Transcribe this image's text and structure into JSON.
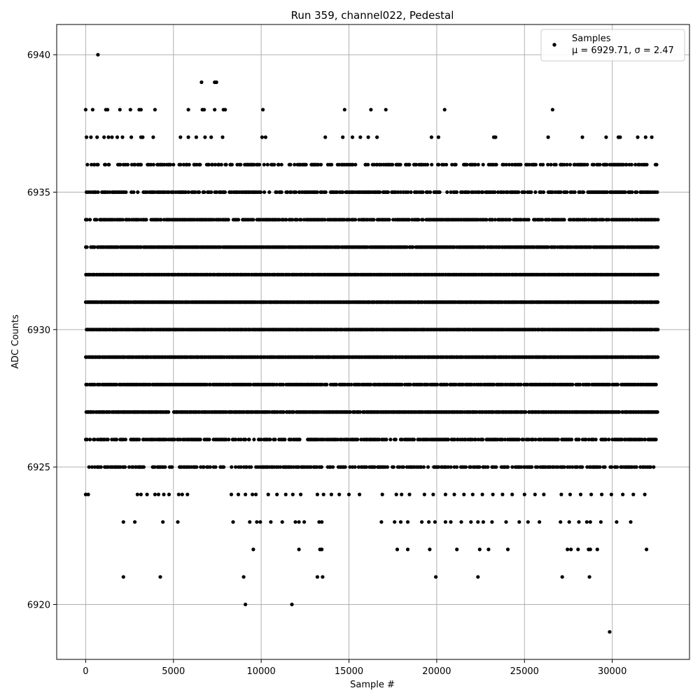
{
  "chart_data": {
    "type": "scatter",
    "title": "Run 359, channel022, Pedestal",
    "xlabel": "Sample #",
    "ylabel": "ADC Counts",
    "xlim": [
      -1650,
      34400
    ],
    "ylim": [
      6918,
      6941.1
    ],
    "xticks": [
      0,
      5000,
      10000,
      15000,
      20000,
      25000,
      30000
    ],
    "xtick_labels": [
      "0",
      "5000",
      "10000",
      "15000",
      "20000",
      "25000",
      "30000"
    ],
    "yticks": [
      6920,
      6925,
      6930,
      6935,
      6940
    ],
    "ytick_labels": [
      "6920",
      "6925",
      "6930",
      "6935",
      "6940"
    ],
    "grid": true,
    "legend": {
      "placement": "top-right",
      "entries": [
        "Samples",
        "μ = 6929.71, σ = 2.47"
      ]
    },
    "marker_color": "#000000",
    "series": [
      {
        "name": "Samples",
        "stats": {
          "mu": 6929.71,
          "sigma": 2.47
        },
        "points": [
          [
            700,
            6940
          ],
          [
            6600,
            6939
          ],
          [
            7350,
            6939
          ],
          [
            7450,
            6939
          ],
          [
            0,
            6938
          ],
          [
            400,
            6938
          ],
          [
            1150,
            6938
          ],
          [
            1250,
            6938
          ],
          [
            1950,
            6938
          ],
          [
            2550,
            6938
          ],
          [
            3050,
            6938
          ],
          [
            3150,
            6938
          ],
          [
            3950,
            6938
          ],
          [
            5850,
            6938
          ],
          [
            6650,
            6938
          ],
          [
            6750,
            6938
          ],
          [
            7350,
            6938
          ],
          [
            7850,
            6938
          ],
          [
            7950,
            6938
          ],
          [
            10100,
            6938
          ],
          [
            14750,
            6938
          ],
          [
            16250,
            6938
          ],
          [
            17100,
            6938
          ],
          [
            20450,
            6938
          ],
          [
            26600,
            6938
          ],
          [
            50,
            6937
          ],
          [
            300,
            6937
          ],
          [
            650,
            6937
          ],
          [
            1050,
            6937
          ],
          [
            1300,
            6937
          ],
          [
            1500,
            6937
          ],
          [
            1800,
            6937
          ],
          [
            2100,
            6937
          ],
          [
            2600,
            6937
          ],
          [
            3150,
            6937
          ],
          [
            3250,
            6937
          ],
          [
            3850,
            6937
          ],
          [
            5400,
            6937
          ],
          [
            5850,
            6937
          ],
          [
            6300,
            6937
          ],
          [
            6800,
            6937
          ],
          [
            7150,
            6937
          ],
          [
            7800,
            6937
          ],
          [
            10050,
            6937
          ],
          [
            10250,
            6937
          ],
          [
            13650,
            6937
          ],
          [
            14650,
            6937
          ],
          [
            15200,
            6937
          ],
          [
            15650,
            6937
          ],
          [
            16100,
            6937
          ],
          [
            16600,
            6937
          ],
          [
            19700,
            6937
          ],
          [
            20100,
            6937
          ],
          [
            23250,
            6937
          ],
          [
            23350,
            6937
          ],
          [
            26350,
            6937
          ],
          [
            28300,
            6937
          ],
          [
            29650,
            6937
          ],
          [
            30350,
            6937
          ],
          [
            30450,
            6937
          ],
          [
            31450,
            6937
          ],
          [
            31900,
            6937
          ],
          [
            32250,
            6937
          ],
          [
            9100,
            6920
          ],
          [
            11750,
            6920
          ],
          [
            29850,
            6919
          ],
          [
            2150,
            6921
          ],
          [
            4250,
            6921
          ],
          [
            9000,
            6921
          ],
          [
            13200,
            6921
          ],
          [
            13500,
            6921
          ],
          [
            19950,
            6921
          ],
          [
            22350,
            6921
          ],
          [
            27150,
            6921
          ],
          [
            28700,
            6921
          ],
          [
            9550,
            6922
          ],
          [
            12150,
            6922
          ],
          [
            13350,
            6922
          ],
          [
            13450,
            6922
          ],
          [
            17750,
            6922
          ],
          [
            18350,
            6922
          ],
          [
            19600,
            6922
          ],
          [
            21150,
            6922
          ],
          [
            22450,
            6922
          ],
          [
            22950,
            6922
          ],
          [
            24050,
            6922
          ],
          [
            27450,
            6922
          ],
          [
            27650,
            6922
          ],
          [
            28050,
            6922
          ],
          [
            28650,
            6922
          ],
          [
            28750,
            6922
          ],
          [
            29150,
            6922
          ],
          [
            31950,
            6922
          ],
          [
            2150,
            6923
          ],
          [
            2800,
            6923
          ],
          [
            4400,
            6923
          ],
          [
            5250,
            6923
          ],
          [
            8400,
            6923
          ],
          [
            9350,
            6923
          ],
          [
            9750,
            6923
          ],
          [
            9950,
            6923
          ],
          [
            10550,
            6923
          ],
          [
            11200,
            6923
          ],
          [
            11950,
            6923
          ],
          [
            12150,
            6923
          ],
          [
            12450,
            6923
          ],
          [
            13300,
            6923
          ],
          [
            13450,
            6923
          ],
          [
            16850,
            6923
          ],
          [
            17600,
            6923
          ],
          [
            17950,
            6923
          ],
          [
            18350,
            6923
          ],
          [
            19150,
            6923
          ],
          [
            19550,
            6923
          ],
          [
            19900,
            6923
          ],
          [
            20500,
            6923
          ],
          [
            20800,
            6923
          ],
          [
            21400,
            6923
          ],
          [
            21950,
            6923
          ],
          [
            22350,
            6923
          ],
          [
            22650,
            6923
          ],
          [
            23150,
            6923
          ],
          [
            23950,
            6923
          ],
          [
            24700,
            6923
          ],
          [
            25200,
            6923
          ],
          [
            25850,
            6923
          ],
          [
            27050,
            6923
          ],
          [
            27550,
            6923
          ],
          [
            28100,
            6923
          ],
          [
            28550,
            6923
          ],
          [
            28750,
            6923
          ],
          [
            29350,
            6923
          ],
          [
            30250,
            6923
          ],
          [
            31050,
            6923
          ],
          [
            0,
            6924
          ],
          [
            150,
            6924
          ],
          [
            2950,
            6924
          ],
          [
            3150,
            6924
          ],
          [
            3500,
            6924
          ],
          [
            3950,
            6924
          ],
          [
            4150,
            6924
          ],
          [
            4450,
            6924
          ],
          [
            4750,
            6924
          ],
          [
            5300,
            6924
          ],
          [
            5500,
            6924
          ],
          [
            5800,
            6924
          ],
          [
            8300,
            6924
          ],
          [
            8700,
            6924
          ],
          [
            9100,
            6924
          ],
          [
            9500,
            6924
          ],
          [
            9700,
            6924
          ],
          [
            10400,
            6924
          ],
          [
            10900,
            6924
          ],
          [
            11400,
            6924
          ],
          [
            11800,
            6924
          ],
          [
            12250,
            6924
          ],
          [
            13200,
            6924
          ],
          [
            13550,
            6924
          ],
          [
            14000,
            6924
          ],
          [
            14450,
            6924
          ],
          [
            15000,
            6924
          ],
          [
            15600,
            6924
          ],
          [
            16900,
            6924
          ],
          [
            17700,
            6924
          ],
          [
            18000,
            6924
          ],
          [
            18450,
            6924
          ],
          [
            19300,
            6924
          ],
          [
            19800,
            6924
          ],
          [
            20500,
            6924
          ],
          [
            21000,
            6924
          ],
          [
            21550,
            6924
          ],
          [
            22050,
            6924
          ],
          [
            22600,
            6924
          ],
          [
            23200,
            6924
          ],
          [
            23750,
            6924
          ],
          [
            24300,
            6924
          ],
          [
            25000,
            6924
          ],
          [
            25600,
            6924
          ],
          [
            26100,
            6924
          ],
          [
            27100,
            6924
          ],
          [
            27600,
            6924
          ],
          [
            28200,
            6924
          ],
          [
            28800,
            6924
          ],
          [
            29400,
            6924
          ],
          [
            29950,
            6924
          ],
          [
            30600,
            6924
          ],
          [
            31200,
            6924
          ],
          [
            31850,
            6924
          ]
        ],
        "dense_levels": [
          {
            "y": 6936,
            "density": 0.55
          },
          {
            "y": 6935,
            "density": 0.7
          },
          {
            "y": 6934,
            "density": 0.8
          },
          {
            "y": 6933,
            "density": 0.95
          },
          {
            "y": 6932,
            "density": 1.0
          },
          {
            "y": 6931,
            "density": 1.0
          },
          {
            "y": 6930,
            "density": 1.0
          },
          {
            "y": 6929,
            "density": 1.0
          },
          {
            "y": 6928,
            "density": 0.85
          },
          {
            "y": 6927,
            "density": 0.95
          },
          {
            "y": 6926,
            "density": 0.7
          },
          {
            "y": 6925,
            "density": 0.6
          }
        ],
        "dense_range": [
          0,
          32600
        ]
      }
    ]
  }
}
